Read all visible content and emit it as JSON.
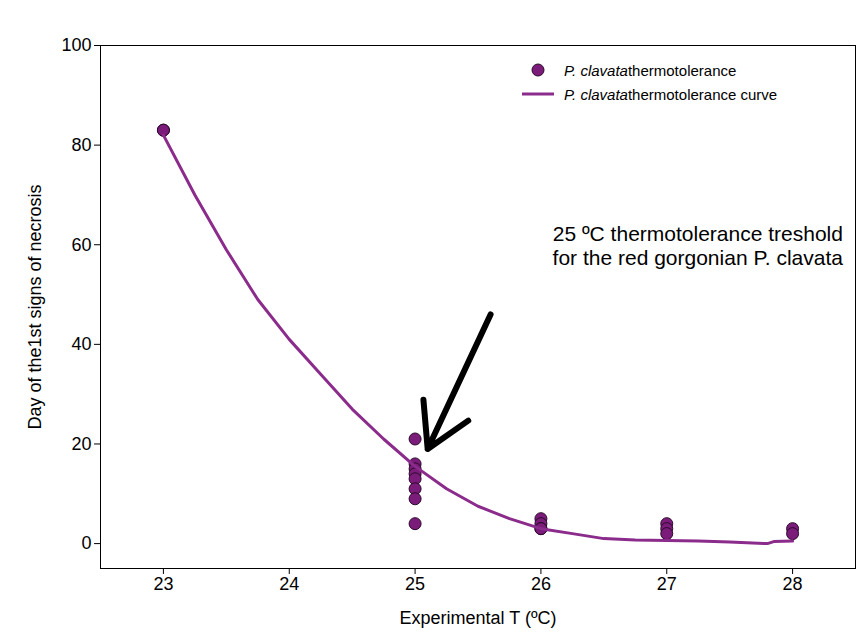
{
  "chart_data": {
    "type": "scatter",
    "x_label": "Experimental T (ºC)",
    "y_label": "Day of the1st signs of necrosis",
    "xlim": [
      22.5,
      28.5
    ],
    "ylim": [
      -5,
      100
    ],
    "xticks": [
      23,
      24,
      25,
      26,
      27,
      28
    ],
    "yticks": [
      0,
      20,
      40,
      60,
      80,
      100
    ],
    "grid": false,
    "legend": "top-right",
    "series": [
      {
        "name": "P. clavata thermotolerance",
        "type": "scatter",
        "color": "#7b1c7b",
        "marker": "circle",
        "x": [
          23,
          23,
          25,
          25,
          25,
          25,
          25,
          25,
          25,
          25,
          26,
          26,
          26,
          26,
          27,
          27,
          27,
          28,
          28
        ],
        "values": [
          83,
          83,
          21,
          16,
          15,
          14,
          13,
          11,
          9,
          4,
          5,
          4,
          3,
          3,
          4,
          3,
          2,
          3,
          2
        ]
      },
      {
        "name": "P. clavata thermotolerance curve",
        "type": "line",
        "color": "#8b2b8b",
        "line_style": "solid",
        "x": [
          23,
          23.25,
          23.5,
          23.75,
          24,
          24.25,
          24.5,
          24.75,
          25,
          25.25,
          25.5,
          25.75,
          26,
          26.25,
          26.5,
          26.75,
          27,
          27.25,
          27.5,
          27.8,
          27.85,
          28
        ],
        "values": [
          82,
          70,
          59,
          49,
          41,
          34,
          27,
          21,
          15.5,
          11,
          7.5,
          5,
          3,
          2,
          1,
          0.7,
          0.6,
          0.5,
          0.3,
          0,
          0.4,
          0.5
        ]
      }
    ],
    "annotation": {
      "lines": [
        "25 ºC thermotolerance treshold",
        "for the red gorgonian P. clavata"
      ],
      "text_xy": [
        28.4,
        56
      ],
      "xy": [
        25.1,
        19
      ],
      "arrow_from": [
        25.6,
        46
      ]
    }
  }
}
